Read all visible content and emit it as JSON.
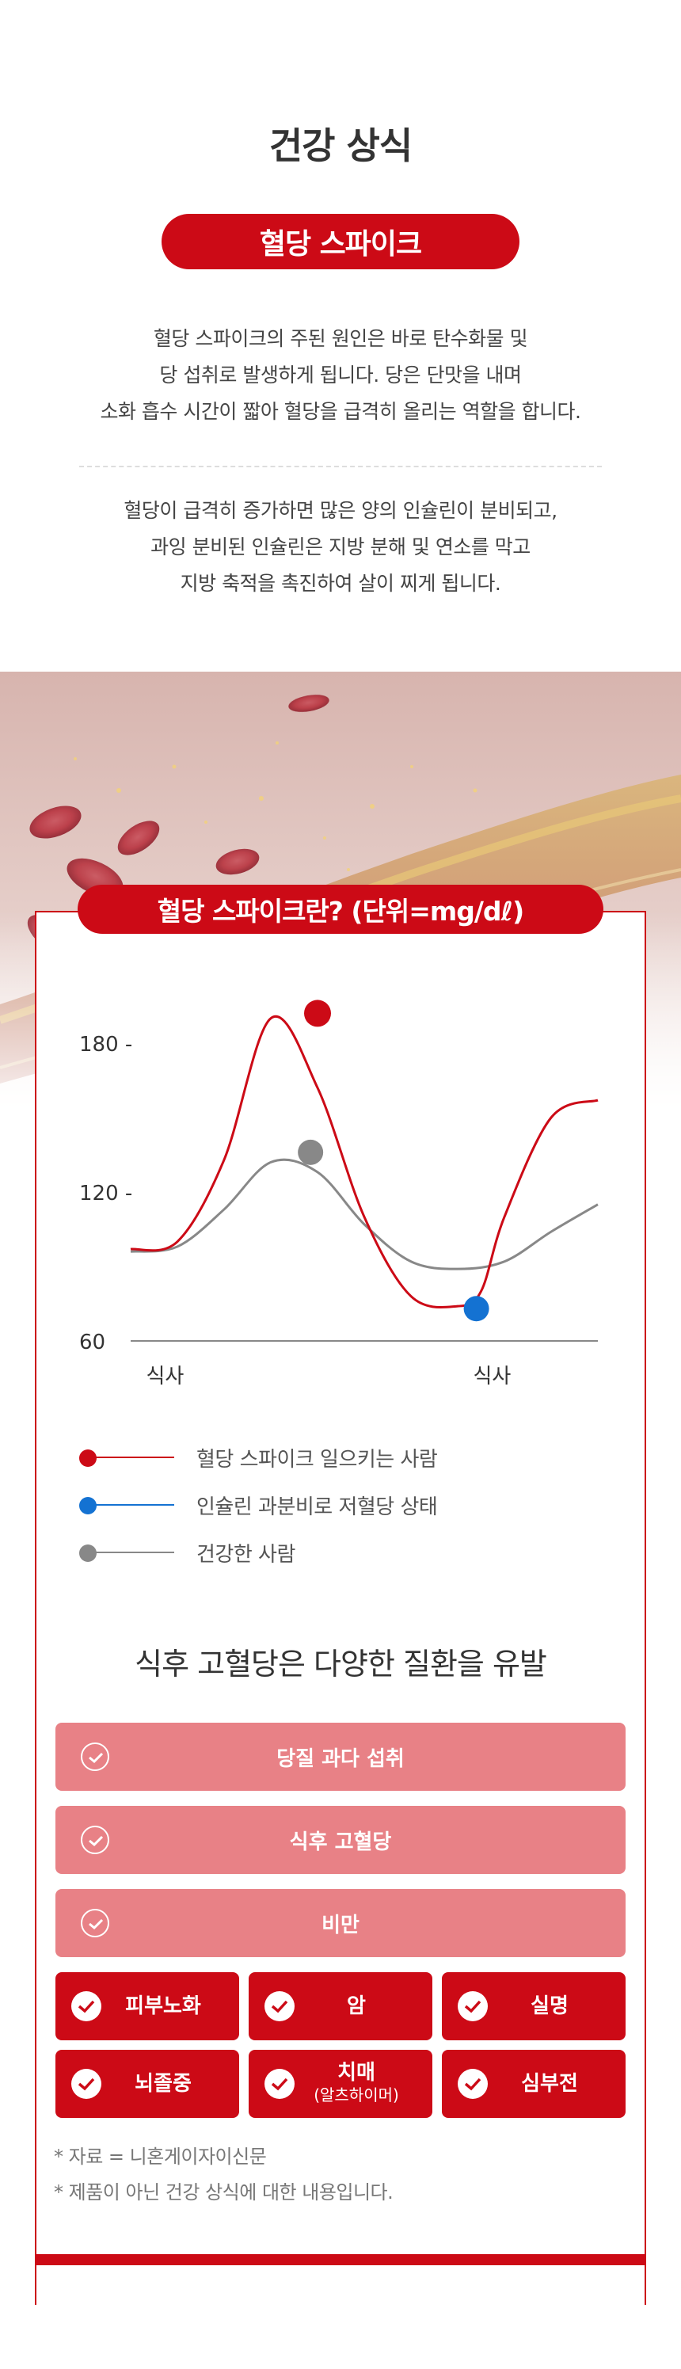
{
  "header": {
    "title": "건강 상식",
    "subtitle": "혈당 스파이크"
  },
  "intro": {
    "paragraph1": [
      "혈당 스파이크의 주된 원인은 바로 탄수화물 및",
      "당 섭취로 발생하게 됩니다. 당은 단맛을 내며",
      "소화 흡수 시간이 짧아 혈당을 급격히 올리는 역할을 합니다."
    ],
    "paragraph2": [
      "혈당이 급격히 증가하면 많은 양의 인슐린이 분비되고,",
      "과잉 분비된 인슐린은 지방 분해 및 연소를 막고",
      "지방 축적을 촉진하여 살이 찌게 됩니다."
    ]
  },
  "chart": {
    "title": "혈당 스파이크란? (단위=mg/dℓ)"
  },
  "chart_data": {
    "type": "line",
    "title": "혈당 스파이크란? (단위=mg/dℓ)",
    "y_ticks": [
      "180 -",
      "120 -",
      "60"
    ],
    "y_tick_values": [
      180,
      120,
      60
    ],
    "ylim": [
      60,
      190
    ],
    "x_labels": [
      "식사",
      "식사"
    ],
    "x_label_positions": [
      0.05,
      0.75
    ],
    "xlim": [
      0,
      1
    ],
    "series": [
      {
        "name": "혈당 스파이크 일으키는 사람",
        "color": "#cc0a16",
        "x": [
          0,
          0.1,
          0.2,
          0.3,
          0.4,
          0.5,
          0.6,
          0.7,
          0.75,
          0.8,
          0.9,
          1.0
        ],
        "values": [
          97,
          100,
          133,
          190,
          162,
          110,
          78,
          74,
          80,
          110,
          150,
          157
        ],
        "marker": {
          "x": 0.4,
          "value": 192,
          "x2": 0.74,
          "value2": 73
        }
      },
      {
        "name": "인슐린 과분비로 저혈당 상태",
        "color": "#1472d2"
      },
      {
        "name": "건강한 사람",
        "color": "#888888",
        "x": [
          0,
          0.1,
          0.2,
          0.3,
          0.4,
          0.5,
          0.6,
          0.7,
          0.8,
          0.9,
          1.0
        ],
        "values": [
          96,
          98,
          113,
          132,
          128,
          107,
          92,
          89,
          92,
          104,
          115
        ],
        "marker": {
          "x": 0.385,
          "value": 136
        }
      }
    ],
    "legend_position": "bottom",
    "grid": false
  },
  "legend": {
    "items": [
      {
        "label": "혈당 스파이크 일으키는 사람",
        "color": "#cc0a16"
      },
      {
        "label": "인슐린 과분비로 저혈당 상태",
        "color": "#1472d2"
      },
      {
        "label": "건강한 사람",
        "color": "#888888"
      }
    ]
  },
  "diseases": {
    "title": "식후 고혈당은 다양한 질환을 유발",
    "causes": [
      "당질 과다 섭취",
      "식후 고혈당",
      "비만"
    ],
    "conditions": [
      {
        "label": "피부노화",
        "sub": ""
      },
      {
        "label": "암",
        "sub": ""
      },
      {
        "label": "실명",
        "sub": ""
      },
      {
        "label": "뇌졸중",
        "sub": ""
      },
      {
        "label": "치매",
        "sub": "(알츠하이머)"
      },
      {
        "label": "심부전",
        "sub": ""
      }
    ]
  },
  "notes": [
    "* 자료 = 니혼게이자이신문",
    "* 제품이 아닌 건강 상식에 대한 내용입니다."
  ],
  "colors": {
    "accent": "#cc0a16",
    "light_accent": "#e88186",
    "blue": "#1472d2",
    "gray": "#888888"
  }
}
